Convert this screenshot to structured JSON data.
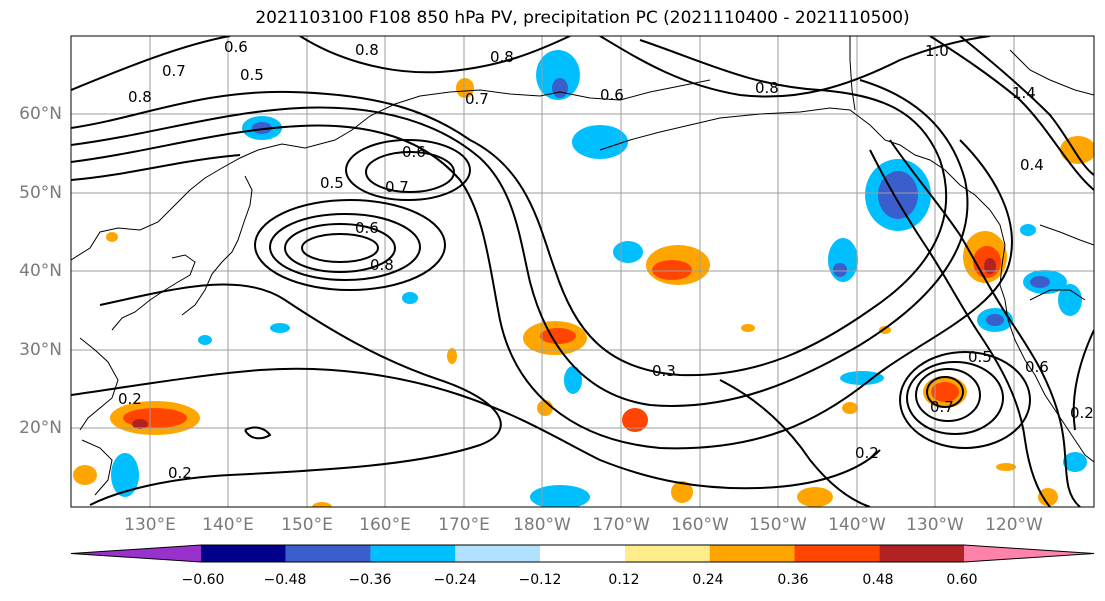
{
  "title": "2021103100 F108 850 hPa PV, precipitation PC (2021110400 - 2021110500)",
  "map": {
    "lat_labels": [
      "60°N",
      "50°N",
      "40°N",
      "30°N",
      "20°N"
    ],
    "lon_labels": [
      "130°E",
      "140°E",
      "150°E",
      "160°E",
      "170°E",
      "180°W",
      "170°W",
      "160°W",
      "150°W",
      "140°W",
      "130°W",
      "120°W"
    ],
    "contour_labels": [
      "0.8",
      "0.7",
      "0.6",
      "0.5",
      "0.8",
      "0.7",
      "0.6",
      "0.8",
      "1.0",
      "1.4",
      "0.6",
      "0.7",
      "0.5",
      "0.6",
      "0.8",
      "0.8",
      "0.3",
      "0.5",
      "0.6",
      "0.7",
      "0.2",
      "0.2",
      "0.2",
      "0.2",
      "0.4"
    ]
  },
  "colorbar": {
    "ticks": [
      "−0.60",
      "−0.48",
      "−0.36",
      "−0.24",
      "−0.12",
      "0.12",
      "0.24",
      "0.36",
      "0.48",
      "0.60"
    ],
    "colors": [
      "#9932cc",
      "#00008b",
      "#3a5fcd",
      "#00bfff",
      "#b0e2ff",
      "#ffffff",
      "#ffec8b",
      "#ffa500",
      "#ff4500",
      "#b22222",
      "#ff82ab"
    ]
  }
}
